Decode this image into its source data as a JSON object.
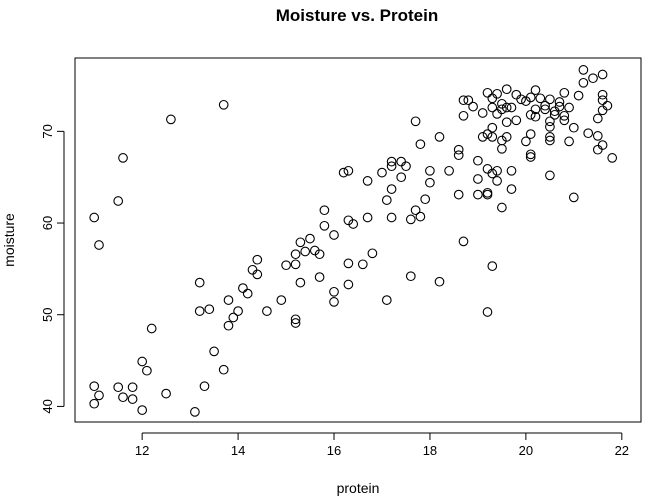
{
  "chart_data": {
    "type": "scatter",
    "title": "Moisture vs. Protein",
    "xlabel": "protein",
    "ylabel": "moisture",
    "xlim": [
      10.6,
      22.4
    ],
    "ylim": [
      38.3,
      78.0
    ],
    "xticks": [
      12,
      14,
      16,
      18,
      20,
      22
    ],
    "yticks": [
      40,
      50,
      60,
      70
    ],
    "grid": false,
    "legend": "none",
    "colors": {
      "points": "#000000",
      "axes": "#000000",
      "background": "#ffffff"
    },
    "points": [
      [
        11.0,
        60.6
      ],
      [
        11.1,
        57.6
      ],
      [
        11.5,
        62.4
      ],
      [
        11.6,
        67.1
      ],
      [
        12.6,
        71.3
      ],
      [
        13.7,
        72.9
      ],
      [
        11.0,
        42.2
      ],
      [
        11.1,
        41.2
      ],
      [
        11.0,
        40.3
      ],
      [
        11.5,
        42.1
      ],
      [
        11.6,
        41.0
      ],
      [
        11.8,
        42.1
      ],
      [
        11.8,
        40.8
      ],
      [
        12.0,
        44.9
      ],
      [
        12.1,
        43.9
      ],
      [
        12.0,
        39.6
      ],
      [
        12.2,
        48.5
      ],
      [
        12.5,
        41.4
      ],
      [
        13.1,
        39.4
      ],
      [
        13.2,
        53.5
      ],
      [
        13.2,
        50.4
      ],
      [
        13.3,
        42.2
      ],
      [
        13.4,
        50.6
      ],
      [
        13.5,
        46.0
      ],
      [
        13.7,
        44.0
      ],
      [
        13.8,
        48.8
      ],
      [
        13.8,
        51.6
      ],
      [
        13.9,
        49.7
      ],
      [
        14.0,
        50.4
      ],
      [
        14.1,
        52.9
      ],
      [
        14.2,
        52.3
      ],
      [
        14.3,
        54.9
      ],
      [
        14.4,
        56.0
      ],
      [
        14.4,
        54.4
      ],
      [
        14.6,
        50.4
      ],
      [
        14.9,
        51.6
      ],
      [
        15.0,
        55.4
      ],
      [
        15.2,
        55.5
      ],
      [
        15.2,
        56.6
      ],
      [
        15.2,
        49.5
      ],
      [
        15.2,
        49.1
      ],
      [
        15.3,
        57.9
      ],
      [
        15.3,
        53.5
      ],
      [
        15.4,
        56.9
      ],
      [
        15.5,
        58.3
      ],
      [
        15.6,
        57.0
      ],
      [
        15.7,
        56.6
      ],
      [
        15.7,
        54.1
      ],
      [
        15.8,
        61.4
      ],
      [
        15.8,
        59.7
      ],
      [
        16.0,
        58.7
      ],
      [
        16.0,
        52.5
      ],
      [
        16.0,
        51.4
      ],
      [
        16.2,
        65.5
      ],
      [
        16.3,
        65.7
      ],
      [
        16.3,
        60.3
      ],
      [
        16.3,
        55.6
      ],
      [
        16.3,
        53.3
      ],
      [
        16.4,
        59.9
      ],
      [
        16.6,
        55.5
      ],
      [
        16.7,
        64.6
      ],
      [
        16.7,
        60.6
      ],
      [
        16.8,
        56.7
      ],
      [
        17.0,
        65.5
      ],
      [
        17.1,
        62.5
      ],
      [
        17.1,
        51.6
      ],
      [
        17.2,
        66.7
      ],
      [
        17.2,
        66.2
      ],
      [
        17.2,
        63.7
      ],
      [
        17.2,
        60.6
      ],
      [
        17.4,
        66.7
      ],
      [
        17.4,
        65.0
      ],
      [
        17.5,
        66.2
      ],
      [
        17.6,
        60.4
      ],
      [
        17.6,
        54.2
      ],
      [
        17.7,
        71.1
      ],
      [
        17.7,
        61.4
      ],
      [
        17.8,
        68.6
      ],
      [
        17.8,
        60.7
      ],
      [
        17.9,
        62.6
      ],
      [
        18.0,
        65.7
      ],
      [
        18.0,
        64.4
      ],
      [
        18.2,
        69.4
      ],
      [
        18.2,
        53.6
      ],
      [
        18.4,
        65.7
      ],
      [
        18.6,
        68.0
      ],
      [
        18.6,
        67.4
      ],
      [
        18.6,
        63.1
      ],
      [
        18.7,
        73.4
      ],
      [
        18.7,
        71.7
      ],
      [
        18.7,
        58.0
      ],
      [
        18.8,
        73.4
      ],
      [
        18.9,
        72.7
      ],
      [
        19.0,
        66.8
      ],
      [
        19.0,
        64.8
      ],
      [
        19.0,
        63.1
      ],
      [
        19.1,
        72.0
      ],
      [
        19.1,
        69.4
      ],
      [
        19.2,
        74.2
      ],
      [
        19.2,
        69.7
      ],
      [
        19.2,
        65.9
      ],
      [
        19.2,
        63.3
      ],
      [
        19.2,
        63.1
      ],
      [
        19.2,
        50.3
      ],
      [
        19.3,
        73.6
      ],
      [
        19.3,
        72.6
      ],
      [
        19.3,
        70.4
      ],
      [
        19.3,
        69.4
      ],
      [
        19.3,
        65.4
      ],
      [
        19.3,
        55.3
      ],
      [
        19.4,
        74.1
      ],
      [
        19.4,
        71.9
      ],
      [
        19.4,
        65.7
      ],
      [
        19.4,
        64.6
      ],
      [
        19.5,
        73.0
      ],
      [
        19.5,
        72.4
      ],
      [
        19.5,
        69.0
      ],
      [
        19.5,
        68.1
      ],
      [
        19.5,
        61.7
      ],
      [
        19.6,
        74.6
      ],
      [
        19.6,
        72.6
      ],
      [
        19.6,
        71.0
      ],
      [
        19.6,
        69.4
      ],
      [
        19.7,
        72.6
      ],
      [
        19.7,
        65.7
      ],
      [
        19.7,
        63.7
      ],
      [
        19.8,
        71.2
      ],
      [
        19.8,
        74.0
      ],
      [
        19.9,
        73.5
      ],
      [
        20.0,
        73.3
      ],
      [
        20.0,
        68.9
      ],
      [
        20.1,
        73.7
      ],
      [
        20.1,
        71.8
      ],
      [
        20.1,
        69.7
      ],
      [
        20.1,
        67.5
      ],
      [
        20.1,
        67.2
      ],
      [
        20.2,
        74.5
      ],
      [
        20.2,
        72.4
      ],
      [
        20.2,
        71.6
      ],
      [
        20.3,
        73.6
      ],
      [
        20.4,
        72.8
      ],
      [
        20.4,
        72.4
      ],
      [
        20.5,
        73.5
      ],
      [
        20.5,
        71.1
      ],
      [
        20.5,
        70.5
      ],
      [
        20.5,
        69.4
      ],
      [
        20.5,
        69.0
      ],
      [
        20.5,
        65.2
      ],
      [
        20.6,
        72.2
      ],
      [
        20.6,
        71.8
      ],
      [
        20.7,
        73.2
      ],
      [
        20.7,
        72.7
      ],
      [
        20.8,
        74.2
      ],
      [
        20.8,
        71.7
      ],
      [
        20.8,
        71.2
      ],
      [
        20.9,
        72.6
      ],
      [
        20.9,
        68.9
      ],
      [
        21.0,
        70.4
      ],
      [
        21.0,
        62.8
      ],
      [
        21.1,
        73.9
      ],
      [
        21.2,
        76.7
      ],
      [
        21.2,
        75.3
      ],
      [
        21.3,
        69.8
      ],
      [
        21.4,
        75.8
      ],
      [
        21.5,
        71.4
      ],
      [
        21.5,
        69.5
      ],
      [
        21.5,
        68.0
      ],
      [
        21.6,
        76.2
      ],
      [
        21.6,
        74.0
      ],
      [
        21.6,
        73.4
      ],
      [
        21.6,
        72.3
      ],
      [
        21.6,
        68.5
      ],
      [
        21.7,
        72.8
      ],
      [
        21.8,
        67.1
      ]
    ]
  }
}
